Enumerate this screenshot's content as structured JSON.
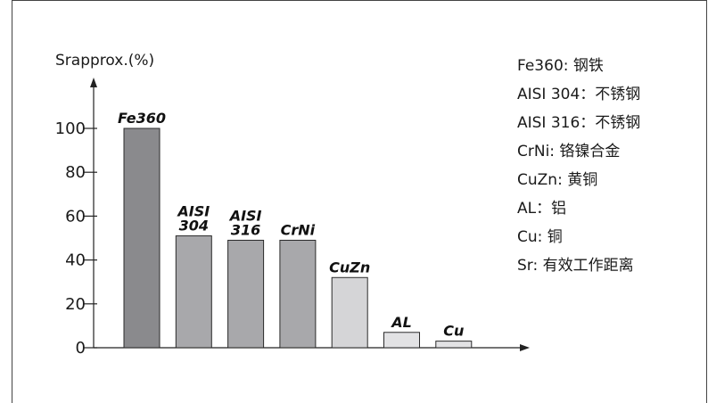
{
  "chart_data": {
    "type": "bar",
    "ylabel": "Srapprox.(%)",
    "ylim": [
      0,
      100
    ],
    "yticks": [
      0,
      20,
      40,
      60,
      80,
      100
    ],
    "grid": false,
    "categories": [
      "Fe360",
      "AISI 304",
      "AISI 316",
      "CrNi",
      "CuZn",
      "AL",
      "Cu"
    ],
    "values": [
      100,
      51,
      49,
      49,
      32,
      7,
      3
    ],
    "bar_colors": [
      "#8a8a8d",
      "#a8a8ab",
      "#a8a8ab",
      "#a8a8ab",
      "#d5d5d7",
      "#e2e2e4",
      "#e2e2e4"
    ],
    "legend": [
      "Fe360: 钢铁",
      "AISI 304：不锈钢",
      "AISI 316：不锈钢",
      "CrNi: 铬镍合金",
      "CuZn: 黄铜",
      "AL：铝",
      "Cu: 铜",
      "Sr: 有效工作距离"
    ]
  }
}
